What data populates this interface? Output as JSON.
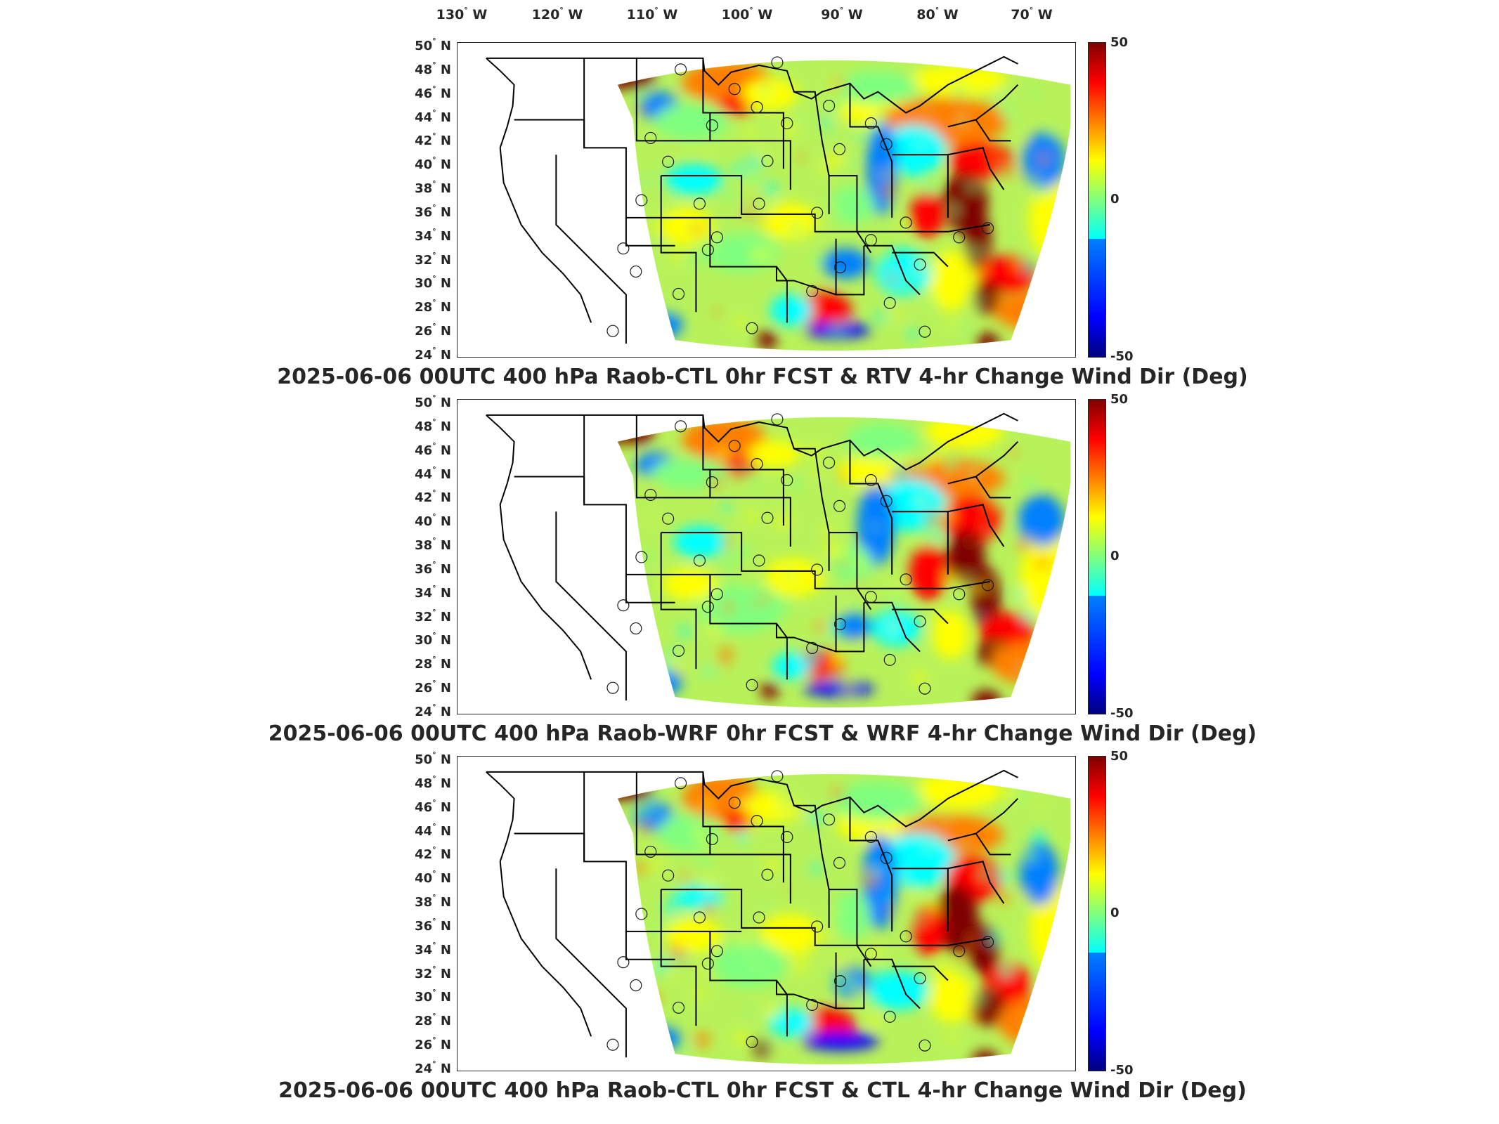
{
  "lon_labels": [
    "130",
    "120",
    "110",
    "100",
    "90",
    "80",
    "70"
  ],
  "lon_suffix": "W",
  "lat_labels": [
    "50",
    "48",
    "46",
    "44",
    "42",
    "40",
    "38",
    "36",
    "34",
    "32",
    "30",
    "28",
    "26",
    "24"
  ],
  "lat_suffix": "N",
  "degree_symbol": "°",
  "colorbar": {
    "max": "50",
    "mid": "0",
    "min": "-50",
    "colormap": "jet"
  },
  "panels": [
    {
      "title": "2025-06-06 00UTC 400 hPa Raob-CTL 0hr FCST & RTV 4-hr Change Wind Dir (Deg)"
    },
    {
      "title": "2025-06-06 00UTC 400 hPa Raob-WRF 0hr FCST & WRF 4-hr Change Wind Dir (Deg)"
    },
    {
      "title": "2025-06-06 00UTC 400 hPa Raob-CTL 0hr FCST & CTL 4-hr Change Wind Dir (Deg)"
    }
  ],
  "colors": {
    "dark_red": "#7f0000",
    "red": "#ff0000",
    "orange": "#ff7f00",
    "yellow": "#ffff00",
    "green": "#7fff7f",
    "cyan": "#00ffff",
    "light_blue": "#007fff",
    "blue": "#0000ff",
    "dark_blue": "#00007f"
  }
}
